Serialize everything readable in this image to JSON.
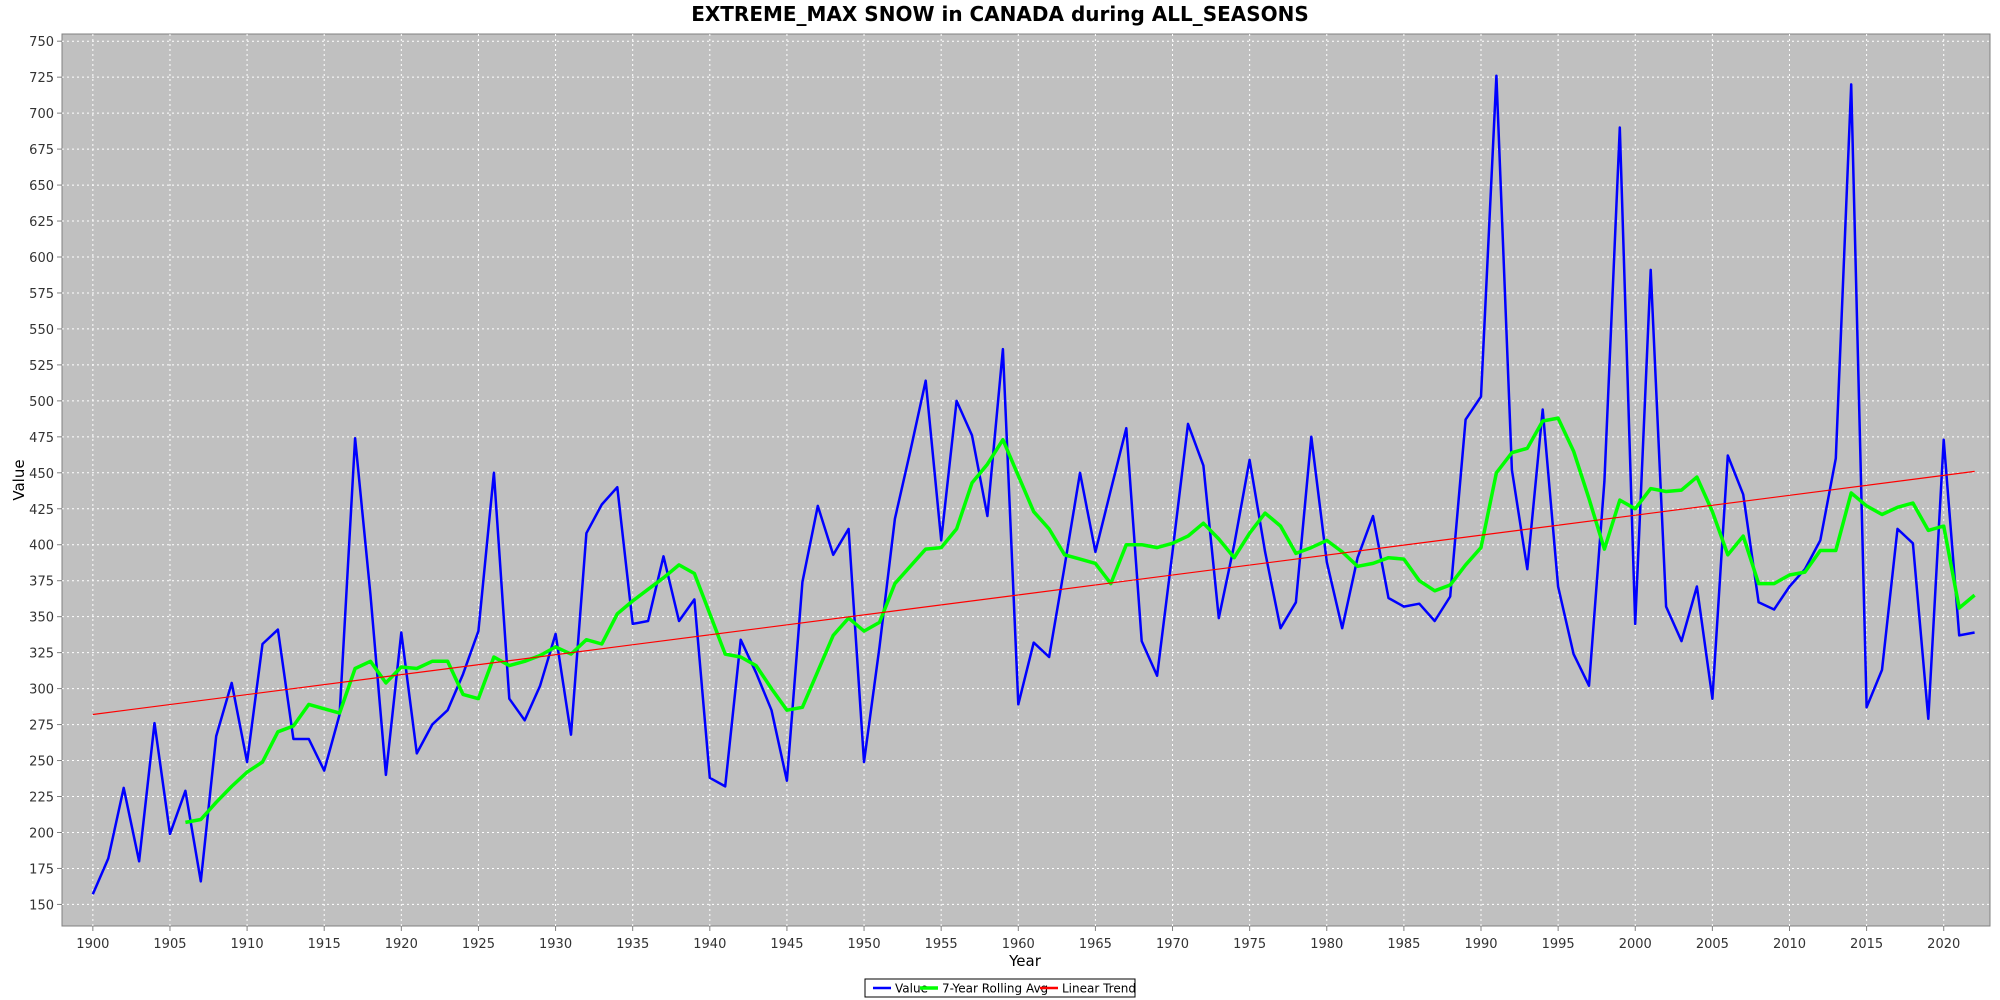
{
  "chart_data": {
    "type": "line",
    "title": "EXTREME_MAX SNOW in CANADA during ALL_SEASONS",
    "xlabel": "Year",
    "ylabel": "Value",
    "xlim": [
      1898,
      2023
    ],
    "ylim": [
      135,
      755
    ],
    "x_ticks": [
      1900,
      1905,
      1910,
      1915,
      1920,
      1925,
      1930,
      1935,
      1940,
      1945,
      1950,
      1955,
      1960,
      1965,
      1970,
      1975,
      1980,
      1985,
      1990,
      1995,
      2000,
      2005,
      2010,
      2015,
      2020
    ],
    "y_ticks": [
      150,
      175,
      200,
      225,
      250,
      275,
      300,
      325,
      350,
      375,
      400,
      425,
      450,
      475,
      500,
      525,
      550,
      575,
      600,
      625,
      650,
      675,
      700,
      725,
      750
    ],
    "grid": true,
    "legend_position": "bottom-center",
    "series": [
      {
        "name": "Value",
        "color": "#0000ff",
        "x": [
          1900,
          1901,
          1902,
          1903,
          1904,
          1905,
          1906,
          1907,
          1908,
          1909,
          1910,
          1911,
          1912,
          1913,
          1914,
          1915,
          1916,
          1917,
          1918,
          1919,
          1920,
          1921,
          1922,
          1923,
          1924,
          1925,
          1926,
          1927,
          1928,
          1929,
          1930,
          1931,
          1932,
          1933,
          1934,
          1935,
          1936,
          1937,
          1938,
          1939,
          1940,
          1941,
          1942,
          1943,
          1944,
          1945,
          1946,
          1947,
          1948,
          1949,
          1950,
          1951,
          1952,
          1953,
          1954,
          1955,
          1956,
          1957,
          1958,
          1959,
          1960,
          1961,
          1962,
          1963,
          1964,
          1965,
          1966,
          1967,
          1968,
          1969,
          1970,
          1971,
          1972,
          1973,
          1974,
          1975,
          1976,
          1977,
          1978,
          1979,
          1980,
          1981,
          1982,
          1983,
          1984,
          1985,
          1986,
          1987,
          1988,
          1989,
          1990,
          1991,
          1992,
          1993,
          1994,
          1995,
          1996,
          1997,
          1998,
          1999,
          2000,
          2001,
          2002,
          2003,
          2004,
          2005,
          2006,
          2007,
          2008,
          2009,
          2010,
          2011,
          2012,
          2013,
          2014,
          2015,
          2016,
          2017,
          2018,
          2019,
          2020,
          2021,
          2022
        ],
        "values": [
          157,
          182,
          231,
          180,
          276,
          199,
          229,
          166,
          267,
          304,
          249,
          331,
          341,
          265,
          265,
          243,
          282,
          474,
          365,
          240,
          339,
          255,
          275,
          285,
          310,
          340,
          450,
          293,
          278,
          302,
          338,
          268,
          408,
          428,
          440,
          345,
          347,
          392,
          347,
          362,
          238,
          232,
          334,
          311,
          285,
          236,
          374,
          427,
          393,
          411,
          249,
          329,
          418,
          465,
          514,
          403,
          500,
          476,
          420,
          536,
          289,
          332,
          322,
          385,
          450,
          395,
          438,
          481,
          333,
          309,
          395,
          484,
          455,
          349,
          400,
          459,
          395,
          342,
          360,
          475,
          388,
          342,
          391,
          420,
          363,
          357,
          359,
          347,
          364,
          487,
          503,
          726,
          452,
          383,
          494,
          371,
          324,
          302,
          444,
          690,
          345,
          591,
          357,
          333,
          371,
          293,
          462,
          435,
          360,
          355,
          371,
          383,
          403,
          460,
          720,
          287,
          313,
          411,
          401,
          279,
          473,
          337,
          339
        ]
      },
      {
        "name": "7-Year Rolling Avg",
        "color": "#00ff00",
        "x": [
          1906,
          1907,
          1908,
          1909,
          1910,
          1911,
          1912,
          1913,
          1914,
          1915,
          1916,
          1917,
          1918,
          1919,
          1920,
          1921,
          1922,
          1923,
          1924,
          1925,
          1926,
          1927,
          1928,
          1929,
          1930,
          1931,
          1932,
          1933,
          1934,
          1935,
          1936,
          1937,
          1938,
          1939,
          1940,
          1941,
          1942,
          1943,
          1944,
          1945,
          1946,
          1947,
          1948,
          1949,
          1950,
          1951,
          1952,
          1953,
          1954,
          1955,
          1956,
          1957,
          1958,
          1959,
          1960,
          1961,
          1962,
          1963,
          1964,
          1965,
          1966,
          1967,
          1968,
          1969,
          1970,
          1971,
          1972,
          1973,
          1974,
          1975,
          1976,
          1977,
          1978,
          1979,
          1980,
          1981,
          1982,
          1983,
          1984,
          1985,
          1986,
          1987,
          1988,
          1989,
          1990,
          1991,
          1992,
          1993,
          1994,
          1995,
          1996,
          1997,
          1998,
          1999,
          2000,
          2001,
          2002,
          2003,
          2004,
          2005,
          2006,
          2007,
          2008,
          2009,
          2010,
          2011,
          2012,
          2013,
          2014,
          2015,
          2016,
          2017,
          2018,
          2019,
          2020,
          2021,
          2022
        ],
        "values": [
          207,
          209,
          221,
          232,
          242,
          249,
          270,
          274,
          289,
          286,
          283,
          314,
          319,
          304,
          315,
          314,
          319,
          319,
          296,
          293,
          322,
          316,
          319,
          323,
          329,
          324,
          334,
          331,
          352,
          361,
          369,
          377,
          386,
          380,
          352,
          324,
          322,
          316,
          300,
          285,
          287,
          312,
          337,
          349,
          340,
          346,
          373,
          385,
          397,
          398,
          411,
          443,
          456,
          473,
          448,
          423,
          411,
          393,
          390,
          387,
          373,
          400,
          400,
          398,
          401,
          406,
          415,
          404,
          391,
          408,
          422,
          413,
          394,
          398,
          403,
          395,
          385,
          387,
          391,
          390,
          375,
          368,
          372,
          386,
          398,
          450,
          464,
          467,
          486,
          488,
          465,
          432,
          397,
          431,
          425,
          439,
          437,
          438,
          447,
          423,
          393,
          406,
          373,
          373,
          379,
          381,
          396,
          396,
          436,
          427,
          421,
          426,
          429,
          410,
          413,
          356,
          365
        ]
      },
      {
        "name": "Linear Trend",
        "color": "#ff0000",
        "x": [
          1900,
          2022
        ],
        "values": [
          282,
          451
        ]
      }
    ]
  }
}
